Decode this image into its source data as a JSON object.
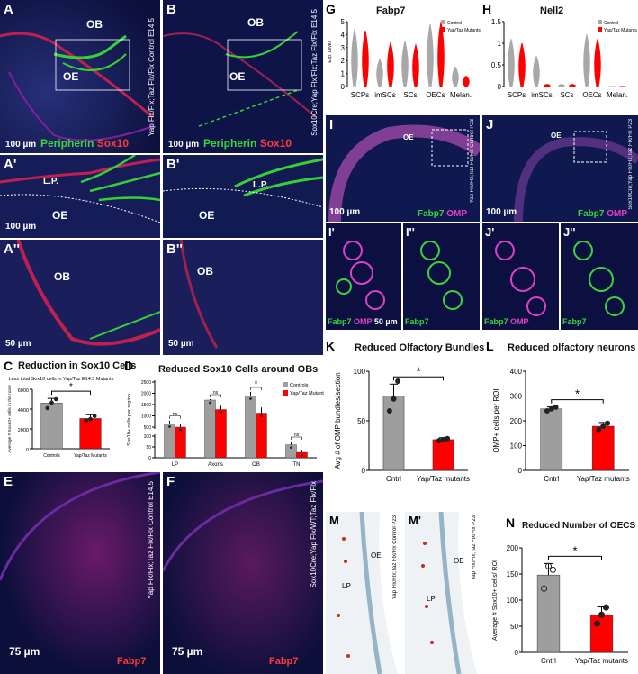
{
  "panels": {
    "A": {
      "letter": "A",
      "region_labels": [
        "OB",
        "OE"
      ],
      "side_label": "Yap",
      "side_label_full": "Yap Flx/Flx;Taz Flx/Flx Control E14.5",
      "scale": "100 µm",
      "stain_green": "Peripherin",
      "stain_red": "Sox10"
    },
    "B": {
      "letter": "B",
      "region_labels": [
        "OB",
        "OE"
      ],
      "side_label_full": "Sox10Cre;Yap Flx/Flx;Taz Flx/Flx E14.5",
      "scale": "100 µm",
      "stain_green": "Peripherin",
      "stain_red": "Sox10"
    },
    "A1": {
      "letter": "A'",
      "region_labels": [
        "L.P.",
        "OE"
      ],
      "scale": "100 µm"
    },
    "B1": {
      "letter": "B'",
      "region_labels": [
        "L.P.",
        "OE"
      ]
    },
    "A2": {
      "letter": "A''",
      "region_labels": [
        "OB"
      ],
      "scale": "50 µm"
    },
    "B2": {
      "letter": "B''",
      "region_labels": [
        "OB"
      ],
      "scale": "50 µm"
    },
    "E": {
      "letter": "E",
      "side_label_full": "Yap Flx/Flx;Taz Flx/Flx Control E14.5",
      "scale": "75 µm",
      "stain": "Fabp7"
    },
    "F": {
      "letter": "F",
      "side_label_full": "Sox10Cre;Yap Flx/WT;Taz Flx/Flx",
      "scale": "75 µm",
      "stain": "Fabp7"
    },
    "I": {
      "letter": "I",
      "region_labels": [
        "OE"
      ],
      "side_label": "Yap Flx/Flx;Taz Flx/Flx Control P23",
      "scale": "100 µm",
      "stain_green": "Fabp7",
      "stain_mag": "OMP"
    },
    "J": {
      "letter": "J",
      "region_labels": [
        "OE"
      ],
      "side_label": "Sox10Cre;Yap Flx/Flx;Taz Flx/Flx P23",
      "scale": "100 µm",
      "stain_green": "Fabp7",
      "stain_mag": "OMP"
    },
    "I1": {
      "letter": "I'",
      "stain_green": "Fabp7",
      "stain_mag": "OMP",
      "scale": "50 µm"
    },
    "I2": {
      "letter": "I''",
      "stain_green": "Fabp7"
    },
    "J1": {
      "letter": "J'",
      "stain_green": "Fabp7",
      "stain_mag": "OMP"
    },
    "J2": {
      "letter": "J''",
      "stain_green": "Fabp7"
    },
    "M": {
      "letter": "M",
      "region_labels": [
        "OE",
        "LP"
      ],
      "side_label": "Yap Flx/Flx;Taz Flx/Flx Control P23"
    },
    "M1": {
      "letter": "M'",
      "region_labels": [
        "OE",
        "LP"
      ],
      "side_label": "Yap Flx/Flx;Taz Flx/Flx P23"
    }
  },
  "chart_data": [
    {
      "id": "C",
      "type": "bar",
      "title": "Reduction in Sox10 Cells",
      "subtitle": "Less total Sox10 cells in  Yap/Taz E14.5 Mutants",
      "categories": [
        "Controls",
        "Yap/Taz Mutants"
      ],
      "values": [
        4600,
        3050
      ],
      "errors": [
        480,
        380
      ],
      "points": [
        [
          4100,
          4650,
          5000
        ],
        [
          2850,
          3000,
          3300
        ]
      ],
      "ylabel": "Average # Sox10+ cells in the nose",
      "ylim": [
        0,
        6000
      ],
      "yticks": [
        0,
        2000,
        4000,
        6000
      ],
      "colors": [
        "#9e9e9e",
        "#ff0000"
      ],
      "significance": "*"
    },
    {
      "id": "D",
      "type": "bar",
      "title": "Reduced Sox10 Cells around OBs",
      "categories": [
        "LP",
        "Axons",
        "OB",
        "TN"
      ],
      "series": [
        {
          "name": "Controls",
          "values": [
            640,
            1700,
            1880,
            60
          ],
          "errors": [
            150,
            40,
            180,
            15
          ],
          "color": "#9e9e9e"
        },
        {
          "name": "Yap/Taz Mutants",
          "values": [
            500,
            1280,
            1120,
            25
          ],
          "errors": [
            140,
            170,
            250,
            12
          ],
          "color": "#ff0000"
        }
      ],
      "ylabel": "Sox10+ cells per region",
      "yticks": [
        0,
        50,
        100,
        500,
        1000,
        1500,
        2000,
        2500
      ],
      "significance": [
        "ns",
        "ns",
        "*",
        "ns"
      ]
    },
    {
      "id": "G",
      "type": "violin",
      "title": "Fabp7",
      "ylabel": "Exp. Level",
      "categories": [
        "SCPs",
        "imSCs",
        "SCs",
        "OECs",
        "Melan."
      ],
      "yticks": [
        0,
        1,
        2,
        3,
        4,
        5
      ],
      "ylim": [
        0,
        5
      ],
      "legend": [
        "Control",
        "Yap/Taz Mutants"
      ],
      "control_max": [
        4.4,
        2.1,
        3.5,
        4.8,
        1.5
      ],
      "mutant_max": [
        4.3,
        3.4,
        3.2,
        5.0,
        0.8
      ]
    },
    {
      "id": "H",
      "type": "violin",
      "title": "Nell2",
      "ylabel": "",
      "categories": [
        "SCPs",
        "imSCs",
        "SCs",
        "OECs",
        "Melan."
      ],
      "yticks": [
        0,
        0.5,
        1.0,
        1.5
      ],
      "ylim": [
        0,
        1.5
      ],
      "legend": [
        "Control",
        "Yap/Taz Mutants"
      ],
      "control_max": [
        1.1,
        0.7,
        0.05,
        1.2,
        0.0
      ],
      "mutant_max": [
        1.0,
        0.05,
        0.05,
        1.1,
        0.0
      ]
    },
    {
      "id": "K",
      "type": "bar",
      "title": "Reduced Olfactory Bundles",
      "categories": [
        "Cntrl",
        "Yap/Taz mutants"
      ],
      "values": [
        75,
        31
      ],
      "errors": [
        12,
        2
      ],
      "points": [
        [
          60,
          72,
          90
        ],
        [
          30,
          31,
          32
        ]
      ],
      "ylabel": "Avg # of  OMP bundles/section",
      "ylim": [
        0,
        100
      ],
      "yticks": [
        0,
        50,
        100
      ],
      "colors": [
        "#9e9e9e",
        "#ff0000"
      ],
      "significance": "*"
    },
    {
      "id": "L",
      "type": "bar",
      "title": "Reduced olfactory neurons",
      "categories": [
        "Cntrl",
        "Yap/Taz mutants"
      ],
      "values": [
        248,
        178
      ],
      "errors": [
        8,
        15
      ],
      "points": [
        [
          240,
          248,
          255
        ],
        [
          165,
          178,
          190
        ]
      ],
      "ylabel": "OMP+ cells per ROI",
      "ylim": [
        0,
        400
      ],
      "yticks": [
        0,
        100,
        200,
        300,
        400
      ],
      "colors": [
        "#9e9e9e",
        "#ff0000"
      ],
      "significance": "*"
    },
    {
      "id": "N",
      "type": "bar",
      "title": "Reduced Number of OECS",
      "categories": [
        "Cntrl",
        "Yap/Taz mutants"
      ],
      "values": [
        148,
        72
      ],
      "errors": [
        22,
        15
      ],
      "points": [
        [
          122,
          165,
          158
        ],
        [
          55,
          72,
          86
        ]
      ],
      "ylabel": "Average # Sox10+ cells/ ROI",
      "ylim": [
        0,
        200
      ],
      "yticks": [
        0,
        50,
        100,
        150,
        200
      ],
      "colors": [
        "#9e9e9e",
        "#ff0000"
      ],
      "significance": "*"
    }
  ]
}
